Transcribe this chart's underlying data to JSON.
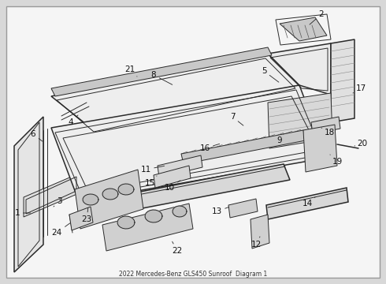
{
  "title": "2022 Mercedes-Benz GLS450 Sunroof  Diagram 1",
  "bg_outer": "#d8d8d8",
  "bg_inner": "#f5f5f5",
  "border_color": "#aaaaaa",
  "line_color": "#2a2a2a",
  "part_fill": "#e8e8e8",
  "part_fill2": "#d4d4d4",
  "fig_width": 4.9,
  "fig_height": 3.6,
  "dpi": 100
}
